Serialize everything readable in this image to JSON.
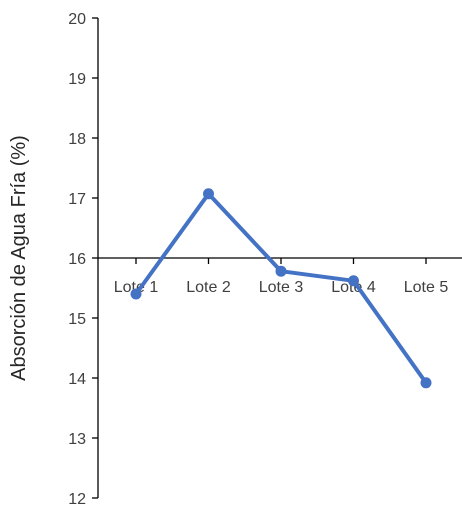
{
  "chart_data": {
    "type": "line",
    "title": "",
    "xlabel": "",
    "ylabel": "Absorción de Agua Fría (%)",
    "categories": [
      "Lote 1",
      "Lote 2",
      "Lote 3",
      "Lote 4",
      "Lote 5"
    ],
    "series": [
      {
        "values": [
          15.4,
          17.07,
          15.78,
          15.62,
          13.92
        ],
        "color": "#4472C4"
      }
    ],
    "ylim": [
      12,
      20
    ],
    "yticks": [
      12,
      13,
      14,
      15,
      16,
      17,
      18,
      19,
      20
    ],
    "x_axis_crosses_at": 16,
    "grid": false,
    "legend": "none"
  }
}
